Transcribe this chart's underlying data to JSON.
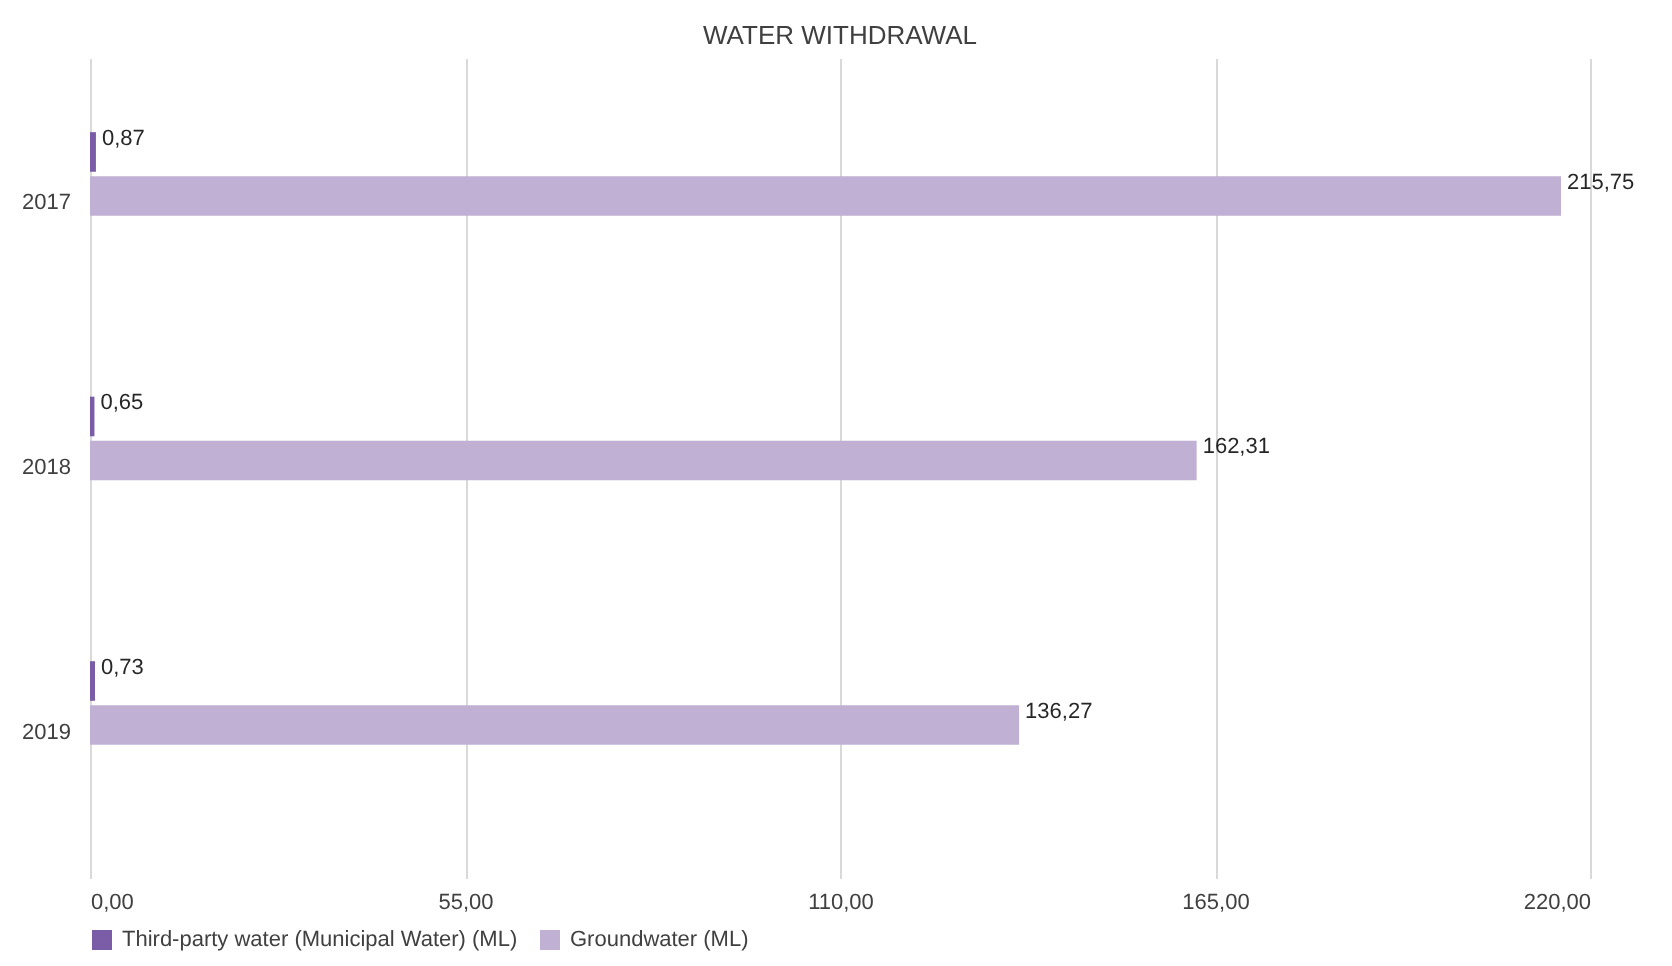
{
  "chart_data": {
    "type": "bar",
    "orientation": "horizontal",
    "title": "WATER WITHDRAWAL",
    "categories": [
      "2017",
      "2018",
      "2019"
    ],
    "series": [
      {
        "name": "Third-party water (Municipal Water) (ML)",
        "color": "#7b5ca6",
        "values": [
          0.87,
          0.65,
          0.73
        ],
        "value_labels": [
          "0,87",
          "0,65",
          "0,73"
        ]
      },
      {
        "name": "Groundwater (ML)",
        "color": "#c0b1d4",
        "values": [
          215.75,
          162.31,
          136.27
        ],
        "value_labels": [
          "215,75",
          "162,31",
          "136,27"
        ]
      }
    ],
    "xlim": [
      0,
      220
    ],
    "xticks": [
      {
        "value": 0,
        "label": "0,00"
      },
      {
        "value": 55,
        "label": "55,00"
      },
      {
        "value": 110,
        "label": "110,00"
      },
      {
        "value": 165,
        "label": "165,00"
      },
      {
        "value": 220,
        "label": "220,00"
      }
    ],
    "grid": "x",
    "legend": "bottom"
  }
}
